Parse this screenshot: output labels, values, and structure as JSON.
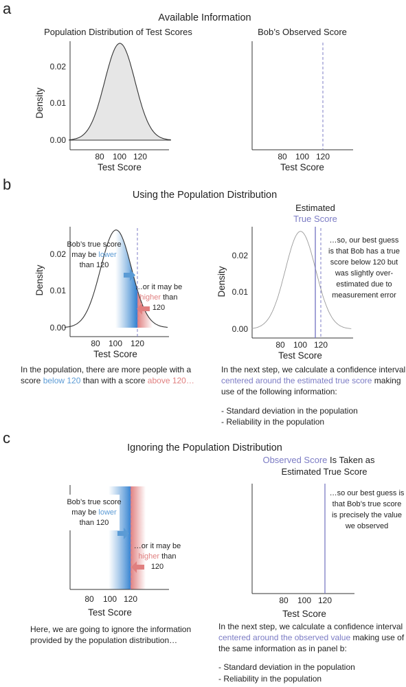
{
  "panels": {
    "a": {
      "letter": "a",
      "title": "Available Information",
      "left": {
        "subtitle": "Population Distribution of Test Scores",
        "ylabel": "Density",
        "xlabel": "Test Score",
        "yticks": [
          "0.00",
          "0.01",
          "0.02"
        ],
        "xticks": [
          "80",
          "100",
          "120"
        ]
      },
      "right": {
        "subtitle": "Bob’s Observed Score",
        "xlabel": "Test Score",
        "xticks": [
          "80",
          "100",
          "120"
        ]
      }
    },
    "b": {
      "letter": "b",
      "title": "Using the Population Distribution",
      "left": {
        "ylabel": "Density",
        "xlabel": "Test Score",
        "yticks": [
          "0.00",
          "0.01",
          "0.02"
        ],
        "xticks": [
          "80",
          "100",
          "120"
        ],
        "ann_lower": [
          "Bob’s true score",
          "may be ",
          "lower",
          "than 120"
        ],
        "ann_higher": [
          "…or it may be",
          "higher",
          " than",
          "120"
        ]
      },
      "right": {
        "heading1": "Estimated",
        "heading2": "True Score",
        "ylabel": "Density",
        "xlabel": "Test Score",
        "yticks": [
          "0.00",
          "0.01",
          "0.02"
        ],
        "xticks": [
          "80",
          "100",
          "120"
        ],
        "note": [
          "…so, our best guess",
          "is that Bob has a true",
          "score below 120 but",
          "was slightly over-",
          "estimated due to",
          "measurement error"
        ]
      },
      "caption_left": {
        "line1": "In the population, there are more people with a",
        "l2a": "score ",
        "l2b": "below 120",
        "l2c": " than with a score ",
        "l2d": "above 120…"
      },
      "caption_right": {
        "line1": "In the next step, we calculate a confidence interval",
        "line2_colored": "centered around the estimated true score",
        "line2_rest": " making",
        "line3": "use of the following information:",
        "bullets": [
          "-  Standard deviation in the population",
          "-  Reliability in the population"
        ]
      }
    },
    "c": {
      "letter": "c",
      "title": "Ignoring the Population Distribution",
      "left": {
        "xlabel": "Test Score",
        "xticks": [
          "80",
          "100",
          "120"
        ],
        "ann_lower": [
          "Bob’s true score",
          "may be ",
          "lower",
          "than 120"
        ],
        "ann_higher": [
          "…or it may be",
          "higher",
          " than",
          "120"
        ]
      },
      "right": {
        "heading1_colored": "Observed Score",
        "heading1_rest": " Is Taken as",
        "heading2": "Estimated True Score",
        "xlabel": "Test Score",
        "xticks": [
          "80",
          "100",
          "120"
        ],
        "note": [
          "…so our best guess is",
          "that Bob’s true score",
          "is precisely the value",
          "we observed"
        ]
      },
      "caption_left": {
        "line1": "Here, we are going to ignore the information",
        "line2": "provided by the population distribution…"
      },
      "caption_right": {
        "line1": "In the next step, we calculate a confidence interval",
        "line2_colored": "centered around the observed value",
        "line2_rest": " making use of",
        "line3": "the same information as in panel b:",
        "bullets": [
          "-  Standard deviation in the population",
          "-  Reliability in the population"
        ]
      }
    }
  },
  "distribution": {
    "mean": 100,
    "sd": 15,
    "observed": 120,
    "estimated_true": 116
  },
  "colors": {
    "blue": "#5b9bd5",
    "red": "#e07f7f",
    "purple": "#7b7bc4",
    "fill": "#e6e6e6"
  }
}
